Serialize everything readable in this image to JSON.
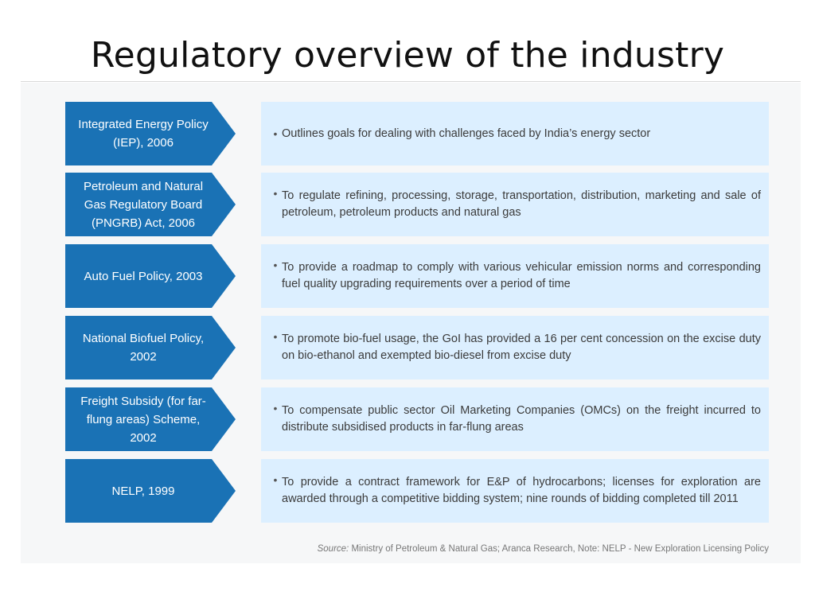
{
  "slide": {
    "title": "Regulatory overview of the industry"
  },
  "policies": [
    {
      "name": "Integrated Energy Policy (IEP), 2006",
      "description": "Outlines goals for dealing with challenges faced by India’s energy sector"
    },
    {
      "name": "Petroleum and Natural Gas Regulatory Board (PNGRB) Act, 2006",
      "description": "To regulate refining, processing, storage, transportation, distribution, marketing and sale of petroleum, petroleum products and natural gas"
    },
    {
      "name": "Auto Fuel Policy, 2003",
      "description": "To provide a roadmap to comply with various vehicular emission norms and corresponding fuel quality upgrading requirements over a period of time"
    },
    {
      "name": "National Biofuel Policy, 2002",
      "description": "To promote bio-fuel usage, the GoI has provided a 16 per cent concession on the excise duty on bio-ethanol and exempted bio-diesel from excise duty"
    },
    {
      "name": "Freight Subsidy (for far-flung areas) Scheme, 2002",
      "description": "To compensate public sector Oil Marketing Companies (OMCs) on the freight incurred to distribute subsidised products in far-flung areas"
    },
    {
      "name": "NELP, 1999",
      "description": "To provide a contract framework for E&P of hydrocarbons; licenses for exploration are awarded through a competitive bidding system; nine rounds of bidding completed till 2011"
    }
  ],
  "bullet_char": "•",
  "source": {
    "label": "Source:",
    "text": "Ministry of Petroleum & Natural Gas; Aranca Research, Note: NELP - New Exploration Licensing Policy"
  },
  "colors": {
    "arrow_blue": "#1a72b5",
    "box_light_blue": "#dcefff"
  }
}
